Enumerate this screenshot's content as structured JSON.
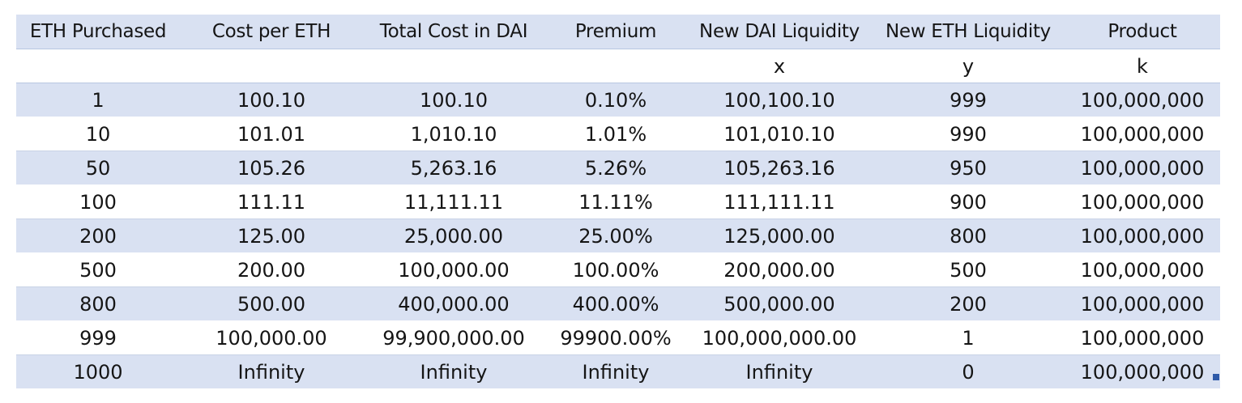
{
  "table": {
    "headers": [
      "ETH Purchased",
      "Cost per ETH",
      "Total Cost in DAI",
      "Premium",
      "New DAI Liquidity",
      "New ETH Liquidity",
      "Product"
    ],
    "variables": [
      "",
      "",
      "",
      "",
      "x",
      "y",
      "k"
    ],
    "rows": [
      [
        "1",
        "100.10",
        "100.10",
        "0.10%",
        "100,100.10",
        "999",
        "100,000,000"
      ],
      [
        "10",
        "101.01",
        "1,010.10",
        "1.01%",
        "101,010.10",
        "990",
        "100,000,000"
      ],
      [
        "50",
        "105.26",
        "5,263.16",
        "5.26%",
        "105,263.16",
        "950",
        "100,000,000"
      ],
      [
        "100",
        "111.11",
        "11,111.11",
        "11.11%",
        "111,111.11",
        "900",
        "100,000,000"
      ],
      [
        "200",
        "125.00",
        "25,000.00",
        "25.00%",
        "125,000.00",
        "800",
        "100,000,000"
      ],
      [
        "500",
        "200.00",
        "100,000.00",
        "100.00%",
        "200,000.00",
        "500",
        "100,000,000"
      ],
      [
        "800",
        "500.00",
        "400,000.00",
        "400.00%",
        "500,000.00",
        "200",
        "100,000,000"
      ],
      [
        "999",
        "100,000.00",
        "99,900,000.00",
        "99900.00%",
        "100,000,000.00",
        "1",
        "100,000,000"
      ],
      [
        "1000",
        "Infinity",
        "Infinity",
        "Infinity",
        "Infinity",
        "0",
        "100,000,000"
      ]
    ]
  },
  "colors": {
    "band": "#d9e1f2",
    "plain": "#ffffff",
    "border": "#b8c6e1",
    "fill_handle": "#2e5aa8"
  }
}
